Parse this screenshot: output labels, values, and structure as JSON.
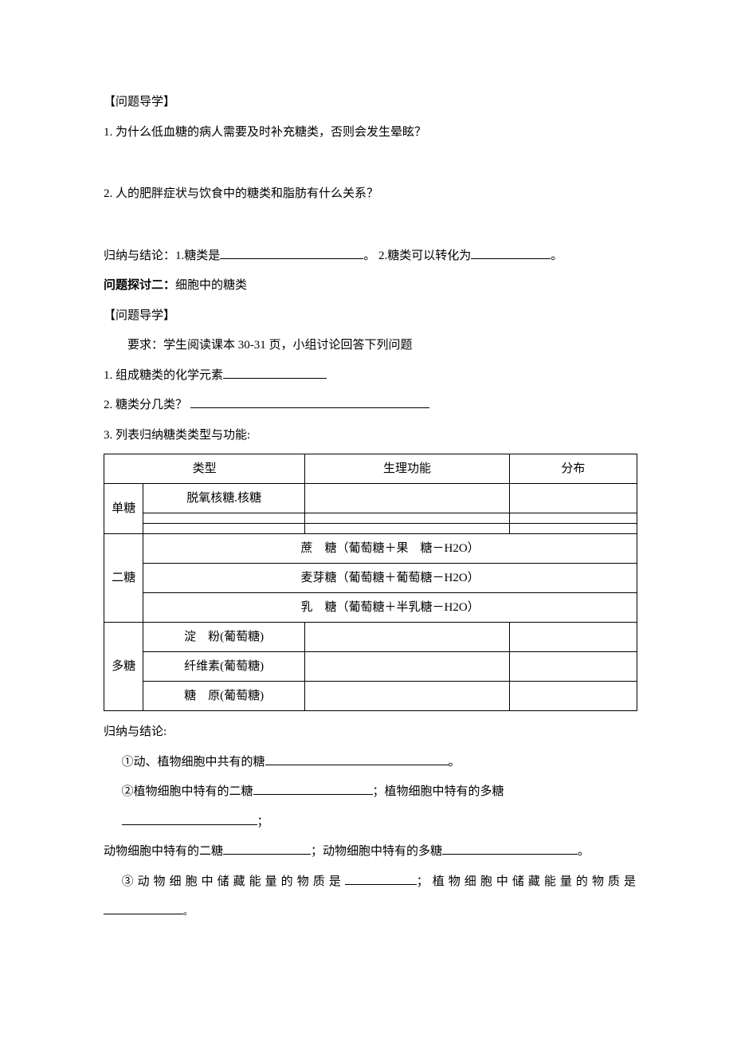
{
  "section1": {
    "heading": "【问题导学】",
    "q1": "1. 为什么低血糖的病人需要及时补充糖类，否则会发生晕眩？",
    "q2": "2. 人的肥胖症状与饮食中的糖类和脂肪有什么关系？",
    "conclusion_prefix": "归纳与结论：1.糖类是",
    "conclusion_mid": "。  2.糖类可以转化为",
    "conclusion_end": "。"
  },
  "section2": {
    "title_prefix": "问题探讨二：",
    "title_rest": "细胞中的糖类",
    "heading": "【问题导学】",
    "requirement": "要求：学生阅读课本 30-31 页，小组讨论回答下列问题",
    "q1": "1. 组成糖类的化学元素",
    "q2": "2. 糖类分几类？ ",
    "q3": "3. 列表归纳糖类类型与功能:"
  },
  "table": {
    "head": {
      "type": "类型",
      "func": "生理功能",
      "dist": "分布"
    },
    "mono": {
      "label": "单糖",
      "r1": "脱氧核糖.核糖"
    },
    "di": {
      "label": "二糖",
      "r1": "蔗　糖（葡萄糖＋果　糖－H2O）",
      "r2": "麦芽糖（葡萄糖＋葡萄糖－H2O）",
      "r3": "乳　糖（葡萄糖＋半乳糖－H2O）"
    },
    "poly": {
      "label": "多糖",
      "r1": "淀　粉(葡萄糖)",
      "r2": "纤维素(葡萄糖)",
      "r3": "糖　原(葡萄糖)"
    }
  },
  "conclusion2": {
    "title": "归纳与结论:",
    "l1a": "①动、植物细胞中共有的糖",
    "l1b": "。",
    "l2a": "②植物细胞中特有的二糖",
    "l2b": "；植物细胞中特有的多糖",
    "l2c": "；",
    "l3a": "动物细胞中特有的二糖",
    "l3b": "；动物细胞中特有的多糖",
    "l3c": "。",
    "l4a": "③动物细胞中储藏能量的物质是",
    "l4b": "；植物细胞中储藏能量的物质是",
    "l5": "。"
  }
}
